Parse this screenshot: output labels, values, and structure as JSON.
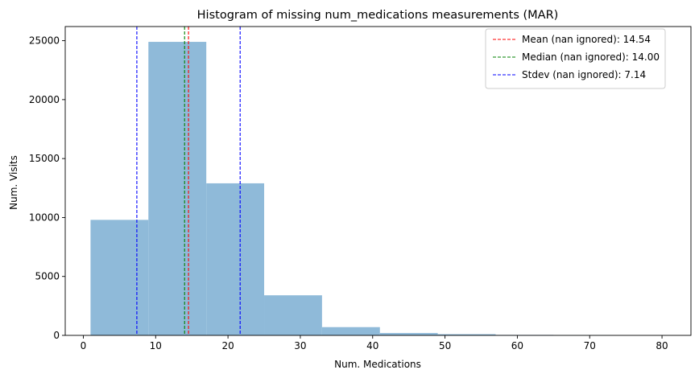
{
  "chart_data": {
    "type": "bar",
    "title": "Histogram of missing num_medications measurements (MAR)",
    "xlabel": "Num. Medications",
    "ylabel": "Num. Visits",
    "xlim": [
      -2.5,
      84
    ],
    "ylim": [
      0,
      26200
    ],
    "xticks": [
      0,
      10,
      20,
      30,
      40,
      50,
      60,
      70,
      80
    ],
    "yticks": [
      0,
      5000,
      10000,
      15000,
      20000,
      25000
    ],
    "bar_color": "#8fbad9",
    "bins": [
      {
        "x0": 1,
        "x1": 9,
        "value": 9800
      },
      {
        "x0": 9,
        "x1": 17,
        "value": 24900
      },
      {
        "x0": 17,
        "x1": 25,
        "value": 12900
      },
      {
        "x0": 25,
        "x1": 33,
        "value": 3400
      },
      {
        "x0": 33,
        "x1": 41,
        "value": 700
      },
      {
        "x0": 41,
        "x1": 49,
        "value": 200
      },
      {
        "x0": 49,
        "x1": 57,
        "value": 100
      },
      {
        "x0": 57,
        "x1": 65,
        "value": 40
      },
      {
        "x0": 65,
        "x1": 73,
        "value": 10
      },
      {
        "x0": 73,
        "x1": 81,
        "value": 5
      }
    ],
    "vlines": [
      {
        "label": "Mean (nan ignored): 14.54",
        "x": 14.54,
        "color": "#ff0000"
      },
      {
        "label": "Median (nan ignored): 14.00",
        "x": 14.0,
        "color": "#008000"
      },
      {
        "label": "Stdev (nan ignored): 7.14",
        "x": 7.4,
        "color": "#0000ff"
      },
      {
        "label": "",
        "x": 21.68,
        "color": "#0000ff"
      }
    ],
    "legend": {
      "placement": "top-right",
      "entries": [
        {
          "label": "Mean (nan ignored): 14.54",
          "color": "#ff0000"
        },
        {
          "label": "Median (nan ignored): 14.00",
          "color": "#008000"
        },
        {
          "label": "Stdev (nan ignored): 7.14",
          "color": "#0000ff"
        }
      ]
    },
    "grid": false
  }
}
